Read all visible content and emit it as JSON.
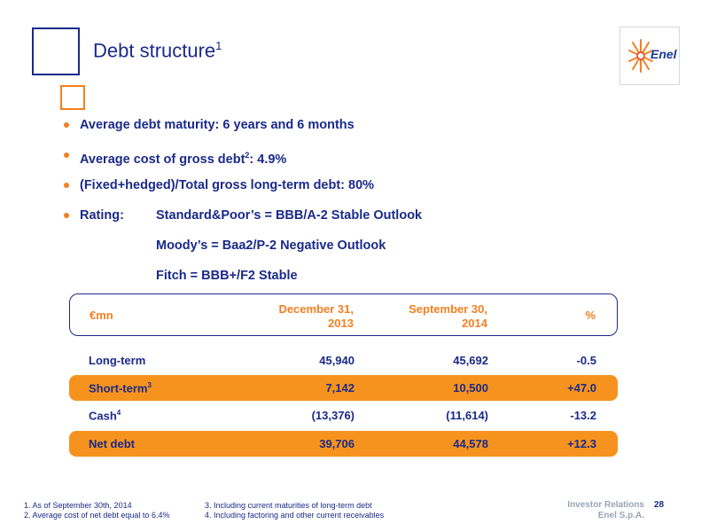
{
  "slide": {
    "title": "Debt structure",
    "title_sup": "1",
    "logo_text": "Enel"
  },
  "bullets": [
    {
      "text": "Average debt maturity: 6 years and 6 months"
    },
    {
      "text_before": "Average cost of gross debt",
      "sup": "2",
      "text_after": ": 4.9%"
    },
    {
      "text": "(Fixed+hedged)/Total gross long-term debt: 80%"
    }
  ],
  "rating": {
    "label": "Rating:",
    "lines": [
      "Standard&Poor’s = BBB/A-2 Stable Outlook",
      "Moody’s = Baa2/P-2 Negative Outlook",
      "Fitch = BBB+/F2 Stable"
    ]
  },
  "table": {
    "headers": {
      "unit": "€mn",
      "col1_line1": "December 31,",
      "col1_line2": "2013",
      "col2_line1": "September 30,",
      "col2_line2": "2014",
      "col3": "%"
    },
    "rows": [
      {
        "label": "Long-term",
        "sup": "",
        "dec2013": "45,940",
        "sep2014": "45,692",
        "pct": "-0.5"
      },
      {
        "label": "Short-term",
        "sup": "3",
        "dec2013": "7,142",
        "sep2014": "10,500",
        "pct": "+47.0"
      },
      {
        "label": "Cash",
        "sup": "4",
        "dec2013": "(13,376)",
        "sep2014": "(11,614)",
        "pct": "-13.2"
      },
      {
        "label": "Net debt",
        "sup": "",
        "dec2013": "39,706",
        "sep2014": "44,578",
        "pct": "+12.3"
      }
    ]
  },
  "footnotes": {
    "fn1": "1. As of September 30th, 2014",
    "fn2": "2. Average cost of net debt equal to 6.4%",
    "fn3": "3. Including current maturities of long-term debt",
    "fn4": "4. Including factoring and other current receivables"
  },
  "footer": {
    "line1": "Investor Relations",
    "line2": "Enel S.p.A.",
    "page": "28"
  },
  "colors": {
    "brand_blue": "#1a2a8a",
    "accent_orange": "#f47f20",
    "highlight_orange": "#f6931e",
    "footer_gray": "#9aa3b5"
  },
  "icons": {
    "logo": "enel-sun-logo-icon"
  }
}
